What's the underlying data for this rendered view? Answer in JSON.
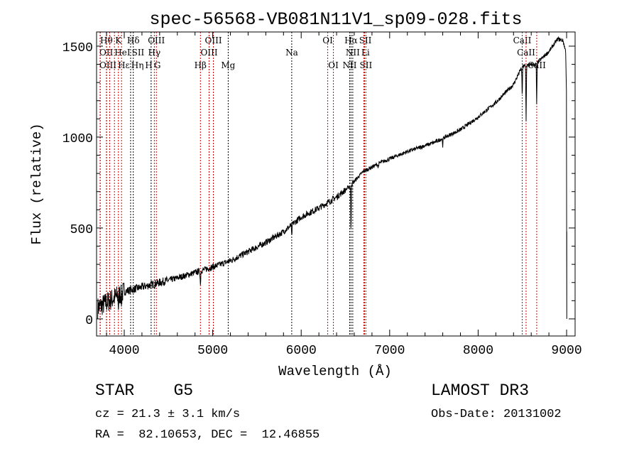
{
  "chart_data": {
    "type": "line",
    "title": "spec-56568-VB081N11V1_sp09-028.fits",
    "xlabel": "Wavelength (Å)",
    "ylabel": "Flux (relative)",
    "xlim": [
      3687,
      9096
    ],
    "ylim": [
      -94,
      1578
    ],
    "xticks": [
      4000,
      5000,
      6000,
      7000,
      8000,
      9000
    ],
    "yticks": [
      0,
      500,
      1000,
      1500
    ],
    "grid": false,
    "series": [
      {
        "name": "spectrum",
        "continuum": [
          [
            3700,
            60
          ],
          [
            3800,
            90
          ],
          [
            3900,
            120
          ],
          [
            4000,
            150
          ],
          [
            4200,
            175
          ],
          [
            4400,
            200
          ],
          [
            4600,
            225
          ],
          [
            4800,
            255
          ],
          [
            5000,
            285
          ],
          [
            5200,
            320
          ],
          [
            5400,
            370
          ],
          [
            5600,
            420
          ],
          [
            5800,
            480
          ],
          [
            6000,
            560
          ],
          [
            6200,
            610
          ],
          [
            6400,
            670
          ],
          [
            6550,
            730
          ],
          [
            6700,
            810
          ],
          [
            6900,
            860
          ],
          [
            7200,
            920
          ],
          [
            7500,
            970
          ],
          [
            7800,
            1040
          ],
          [
            8000,
            1110
          ],
          [
            8200,
            1190
          ],
          [
            8400,
            1290
          ],
          [
            8500,
            1390
          ],
          [
            8650,
            1400
          ],
          [
            8800,
            1470
          ],
          [
            8900,
            1540
          ],
          [
            8960,
            1530
          ],
          [
            8990,
            1470
          ],
          [
            9000,
            1200
          ],
          [
            9002,
            0
          ]
        ],
        "absorption": [
          [
            3934,
            -60
          ],
          [
            3969,
            -50
          ],
          [
            4861,
            -80
          ],
          [
            5893,
            -70
          ],
          [
            6563,
            -260
          ],
          [
            6870,
            -25
          ],
          [
            7600,
            -40
          ],
          [
            8498,
            -170
          ],
          [
            8542,
            -310
          ],
          [
            8662,
            -220
          ]
        ]
      }
    ],
    "lines": [
      {
        "label": "Hθ",
        "wavelength": 3798,
        "row": 1,
        "color": "#cc0000"
      },
      {
        "label": "K",
        "wavelength": 3934,
        "row": 1,
        "color": "#cc0000"
      },
      {
        "label": "Hδ",
        "wavelength": 4102,
        "row": 1,
        "color": "#000000"
      },
      {
        "label": "OIII",
        "wavelength": 4363,
        "row": 1,
        "color": "#cc0000"
      },
      {
        "label": "OIII",
        "wavelength": 5007,
        "row": 1,
        "color": "#cc0000"
      },
      {
        "label": "OI",
        "wavelength": 6300,
        "row": 1,
        "color": "#cc0000"
      },
      {
        "label": "Hα",
        "wavelength": 6563,
        "row": 1,
        "color": "#000000"
      },
      {
        "label": "SII",
        "wavelength": 6716,
        "row": 1,
        "color": "#cc0000"
      },
      {
        "label": "CaII",
        "wavelength": 8498,
        "row": 1,
        "color": "#cc0000"
      },
      {
        "label": "OII",
        "wavelength": 3727,
        "row": 2,
        "color": "#cc0000"
      },
      {
        "label": "HeI",
        "wavelength": 3889,
        "row": 2,
        "color": "#cc0000"
      },
      {
        "label": "SII",
        "wavelength": 4072,
        "row": 2,
        "color": "#000000"
      },
      {
        "label": "Hγ",
        "wavelength": 4340,
        "row": 2,
        "color": "#cc0000"
      },
      {
        "label": "OIII",
        "wavelength": 4959,
        "row": 2,
        "color": "#cc0000"
      },
      {
        "label": "Na",
        "wavelength": 5893,
        "row": 2,
        "color": "#000000"
      },
      {
        "label": "NII",
        "wavelength": 6583,
        "row": 2,
        "color": "#000000"
      },
      {
        "label": "Li",
        "wavelength": 6708,
        "row": 2,
        "color": "#cc0000"
      },
      {
        "label": "CaII",
        "wavelength": 8542,
        "row": 2,
        "color": "#cc0000"
      },
      {
        "label": "OIII",
        "wavelength": 3729,
        "row": 3,
        "color": "#cc0000"
      },
      {
        "label": "Hε",
        "wavelength": 3800,
        "row": 3,
        "color": "#cc0000"
      },
      {
        "label": "Hη",
        "wavelength": 3835,
        "row": 3,
        "color": "#cc0000"
      },
      {
        "label": "H",
        "wavelength": 3969,
        "row": 3,
        "color": "#cc0000"
      },
      {
        "label": "G",
        "wavelength": 4304,
        "row": 3,
        "color": "#000000"
      },
      {
        "label": "Hβ",
        "wavelength": 4861,
        "row": 3,
        "color": "#cc0000"
      },
      {
        "label": "Mg",
        "wavelength": 5175,
        "row": 3,
        "color": "#000000"
      },
      {
        "label": "OI",
        "wavelength": 6364,
        "row": 3,
        "color": "#cc0000"
      },
      {
        "label": "NII",
        "wavelength": 6548,
        "row": 3,
        "color": "#000000"
      },
      {
        "label": "SII",
        "wavelength": 6731,
        "row": 3,
        "color": "#cc0000"
      },
      {
        "label": "CaII",
        "wavelength": 8662,
        "row": 3,
        "color": "#cc0000"
      }
    ]
  },
  "info": {
    "class": "STAR",
    "subclass": "G5",
    "survey": "LAMOST DR3",
    "cz": "cz = 21.3 ± 3.1 km/s",
    "obs_date": "Obs-Date: 20131002",
    "coords": "RA =  82.10653, DEC =  12.46855"
  }
}
